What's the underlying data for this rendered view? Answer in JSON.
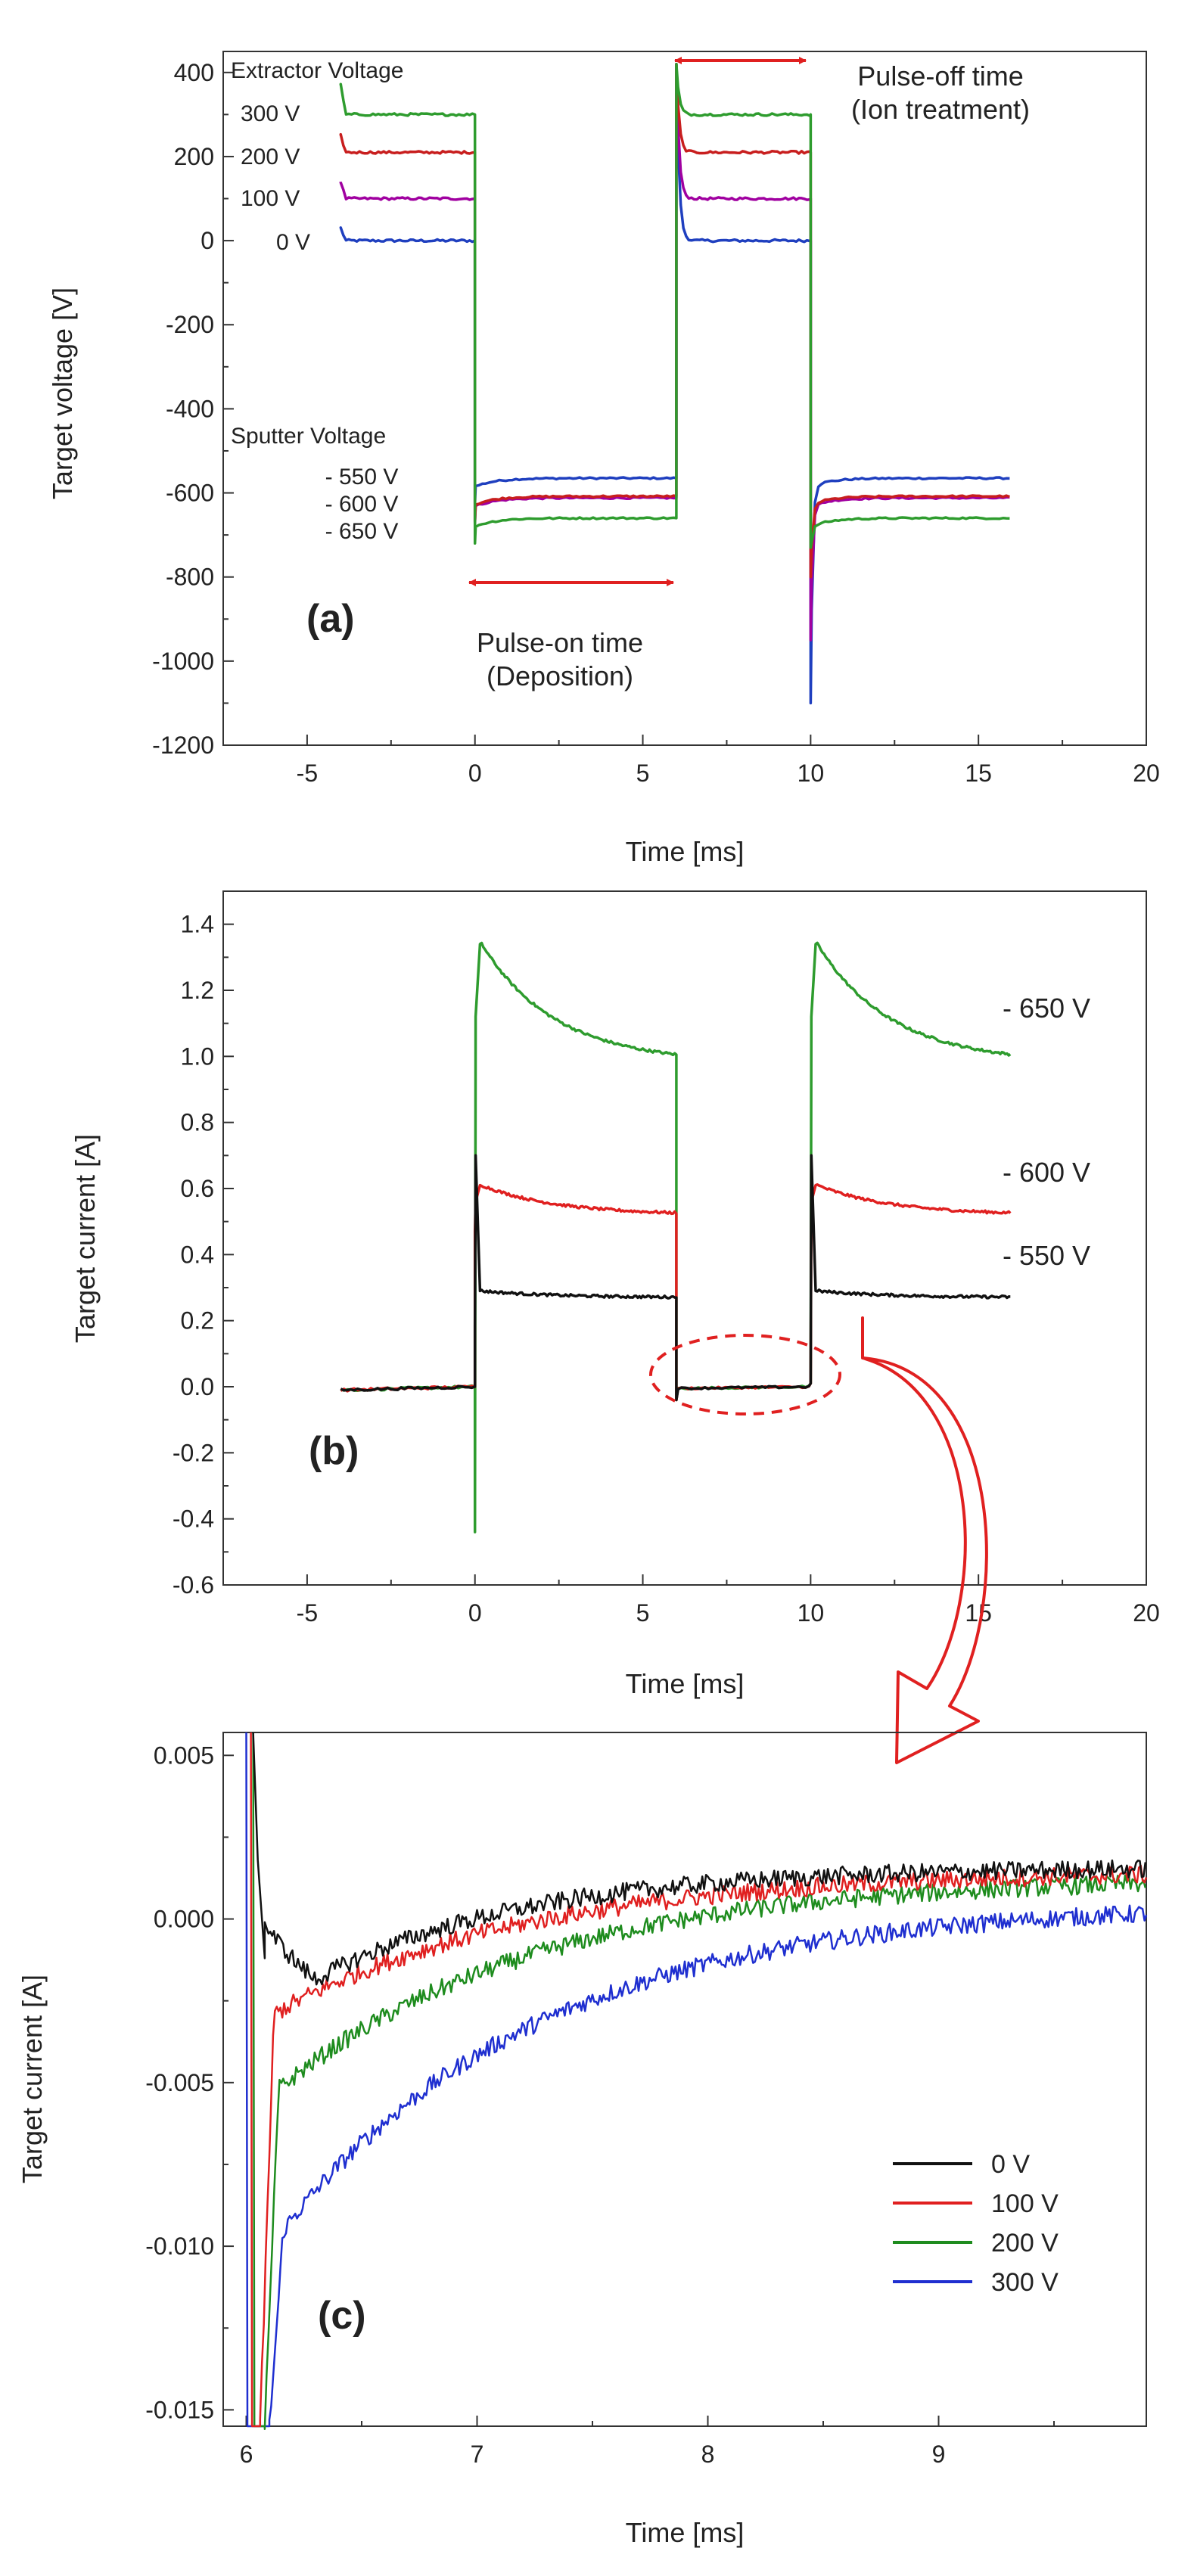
{
  "chart_data": [
    {
      "type": "line",
      "panel_label": "(a)",
      "xlabel": "Time [ms]",
      "ylabel": "Target voltage [V]",
      "xlim": [
        -7.5,
        20
      ],
      "ylim": [
        -1200,
        450
      ],
      "xticks": [
        -5,
        0,
        5,
        10,
        15,
        20
      ],
      "yticks": [
        400,
        200,
        0,
        -200,
        -400,
        -600,
        -800,
        -1000,
        -1200
      ],
      "extractor_title": "Extractor Voltage",
      "extractor_labels": [
        "300 V",
        "200 V",
        "100 V",
        "0 V"
      ],
      "sputter_title": "Sputter Voltage",
      "sputter_labels": [
        "- 550 V",
        "- 600 V",
        "- 650 V"
      ],
      "pulse_on_label": [
        "Pulse-on time",
        "(Deposition)"
      ],
      "pulse_off_label": [
        "Pulse-off time",
        "(Ion treatment)"
      ],
      "pulse_on_range": [
        0,
        6
      ],
      "pulse_off_range": [
        6,
        10
      ],
      "series": [
        {
          "name": "-550 V / 0 V",
          "color": "#1f3fbf",
          "off_level": 0,
          "on_level": -565,
          "peak_start": 30,
          "peak_high": 420,
          "dip_low": -1100
        },
        {
          "name": "-600 V / 100 V",
          "color": "#a000a0",
          "off_level": 100,
          "on_level": -612,
          "peak_start": 140,
          "peak_high": 420,
          "dip_low": -950
        },
        {
          "name": "-600 V / 200 V",
          "color": "#c81e1e",
          "off_level": 210,
          "on_level": -608,
          "peak_start": 250,
          "peak_high": 420,
          "dip_low": -800
        },
        {
          "name": "-650 V / 300 V",
          "color": "#2e9c2e",
          "off_level": 300,
          "on_level": -660,
          "peak_start": 370,
          "peak_high": 420,
          "dip_low": -730
        }
      ]
    },
    {
      "type": "line",
      "panel_label": "(b)",
      "xlabel": "Time [ms]",
      "ylabel": "Target current [A]",
      "xlim": [
        -7.5,
        20
      ],
      "ylim": [
        -0.6,
        1.5
      ],
      "xticks": [
        -5,
        0,
        5,
        10,
        15,
        20
      ],
      "yticks": [
        1.4,
        1.2,
        1.0,
        0.8,
        0.6,
        0.4,
        0.2,
        0.0,
        -0.2,
        -0.4,
        -0.6
      ],
      "ytick_labels": [
        "1.4",
        "1.2",
        "1.0",
        "0.8",
        "0.6",
        "0.4",
        "0.2",
        "0.0",
        "-0.2",
        "-0.4",
        "-0.6"
      ],
      "series": [
        {
          "name": "- 650 V",
          "color": "#2e9c2e",
          "peak": 1.34,
          "end": 0.98,
          "spike_low": -0.44,
          "spike_high": 1.12
        },
        {
          "name": "- 600 V",
          "color": "#e02020",
          "peak": 0.61,
          "end": 0.52,
          "spike_low": 0.47,
          "spike_high": 0.56
        },
        {
          "name": "- 550 V",
          "color": "#111111",
          "peak": 0.29,
          "end": 0.27,
          "spike_low": 0.18,
          "spike_high": 0.7
        }
      ],
      "zoom_region": [
        6,
        10
      ]
    },
    {
      "type": "line",
      "panel_label": "(c)",
      "xlabel": "Time [ms]",
      "ylabel": "Target current [A]",
      "xlim": [
        5.9,
        9.9
      ],
      "ylim": [
        -0.0155,
        0.0057
      ],
      "xticks": [
        6,
        7,
        8,
        9
      ],
      "yticks": [
        0.005,
        0.0,
        -0.005,
        -0.01,
        -0.015
      ],
      "ytick_labels": [
        "0.005",
        "0.000",
        "-0.005",
        "-0.010",
        "-0.015"
      ],
      "legend_position": "center-right",
      "series": [
        {
          "name": "0 V",
          "color": "#111111",
          "min": -0.0028,
          "t_min": 6.3,
          "end": 0.0016
        },
        {
          "name": "100 V",
          "color": "#e02020",
          "min": -0.0029,
          "t_min": 6.12,
          "end": 0.0015
        },
        {
          "name": "200 V",
          "color": "#1e8c1e",
          "min": -0.0052,
          "t_min": 6.12,
          "end": 0.0013
        },
        {
          "name": "300 V",
          "color": "#1f2fd0",
          "min": -0.0095,
          "t_min": 6.15,
          "end": 0.0005
        }
      ]
    }
  ]
}
